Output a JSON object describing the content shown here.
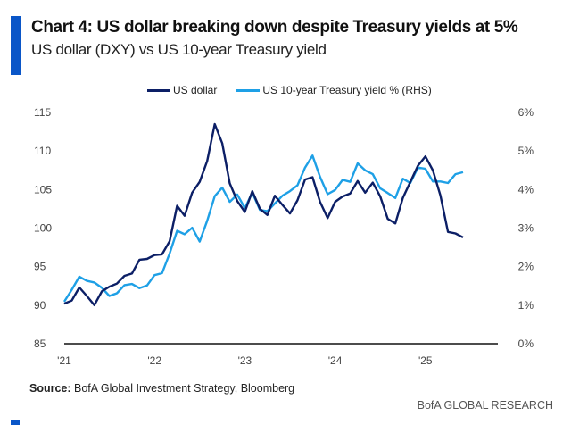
{
  "header": {
    "title": "Chart 4: US dollar breaking down despite Treasury yields at 5%",
    "subtitle": "US dollar (DXY) vs US 10-year Treasury yield"
  },
  "footer": {
    "source_label": "Source:",
    "source_text": " BofA Global Investment Strategy, Bloomberg",
    "brand": "BofA GLOBAL RESEARCH"
  },
  "chart_data": {
    "type": "line",
    "title": "Chart 4: US dollar breaking down despite Treasury yields at 5%",
    "legend_position": "top-center",
    "colors": {
      "dxy": "#0c1f66",
      "yield": "#1ea0e6"
    },
    "x_ticks": [
      "'21",
      "'22",
      "'23",
      "'24",
      "'25"
    ],
    "y_left": {
      "ticks": [
        "85",
        "90",
        "95",
        "100",
        "105",
        "110",
        "115"
      ],
      "range": [
        85,
        115
      ]
    },
    "y_right": {
      "ticks": [
        "0%",
        "1%",
        "2%",
        "3%",
        "4%",
        "5%",
        "6%"
      ],
      "range": [
        0,
        6
      ]
    },
    "x_start_year": 2021,
    "series": [
      {
        "name": "US dollar",
        "axis": "left",
        "values": [
          90.2,
          90.6,
          92.3,
          91.2,
          90.0,
          91.8,
          92.4,
          92.8,
          93.8,
          94.1,
          95.9,
          96.0,
          96.5,
          96.6,
          98.3,
          102.9,
          101.6,
          104.6,
          106.0,
          108.7,
          113.5,
          111.0,
          105.8,
          103.5,
          102.1,
          104.8,
          102.5,
          101.7,
          104.2,
          103.0,
          101.9,
          103.6,
          106.3,
          106.6,
          103.4,
          101.3,
          103.4,
          104.1,
          104.5,
          106.1,
          104.6,
          105.9,
          104.1,
          101.2,
          100.6,
          103.9,
          106.0,
          108.1,
          109.3,
          107.5,
          104.2,
          99.5,
          99.3,
          98.8
        ]
      },
      {
        "name": "US 10-year Treasury yield % (RHS)",
        "axis": "right",
        "values": [
          1.09,
          1.4,
          1.74,
          1.63,
          1.59,
          1.45,
          1.24,
          1.31,
          1.52,
          1.55,
          1.44,
          1.51,
          1.78,
          1.83,
          2.34,
          2.93,
          2.84,
          3.01,
          2.65,
          3.19,
          3.83,
          4.05,
          3.68,
          3.87,
          3.52,
          3.92,
          3.47,
          3.44,
          3.64,
          3.84,
          3.96,
          4.11,
          4.57,
          4.88,
          4.33,
          3.88,
          3.99,
          4.25,
          4.2,
          4.68,
          4.5,
          4.4,
          4.03,
          3.91,
          3.78,
          4.28,
          4.17,
          4.57,
          4.54,
          4.21,
          4.21,
          4.17,
          4.4,
          4.45
        ]
      }
    ]
  }
}
